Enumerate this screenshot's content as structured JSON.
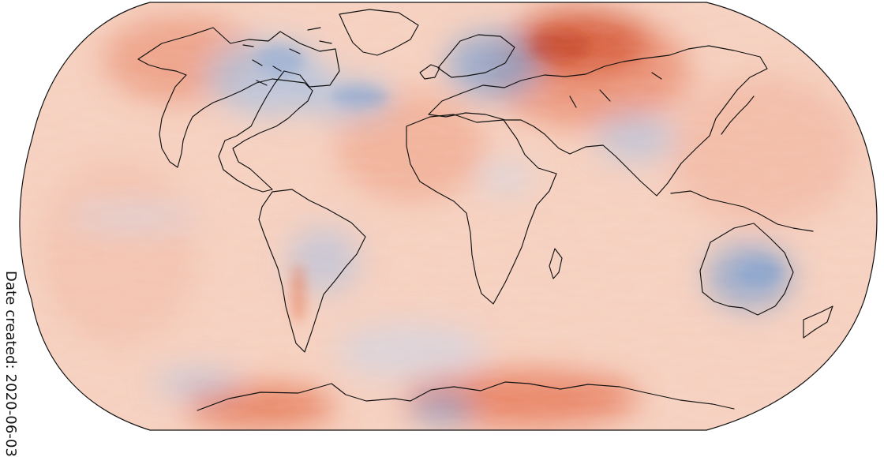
{
  "figure": {
    "date_created_text": "Date created: 2020-06-03"
  },
  "map": {
    "projection": "Robinson-style global projection",
    "colors": {
      "ocean_warm_base": "#f6d0bf",
      "warm_light": "#f5c2ad",
      "warm_mid": "#ef9b7e",
      "warm_strong": "#e56f4c",
      "warm_extreme": "#c4401f",
      "neutral": "#f5eeea",
      "cool_light": "#d4deee",
      "cool_mid": "#a8c0e2",
      "cool_strong": "#7c9ece",
      "coastline": "#111111",
      "border": "#111111"
    },
    "regions": [
      "north-america-cool-anomaly",
      "europe-cool-anomaly",
      "siberia-warm-anomaly",
      "australia-cool-anomaly",
      "south-america-cool-anomaly",
      "antarctica-warm-anomaly",
      "antarctica-cool-anomaly"
    ]
  }
}
